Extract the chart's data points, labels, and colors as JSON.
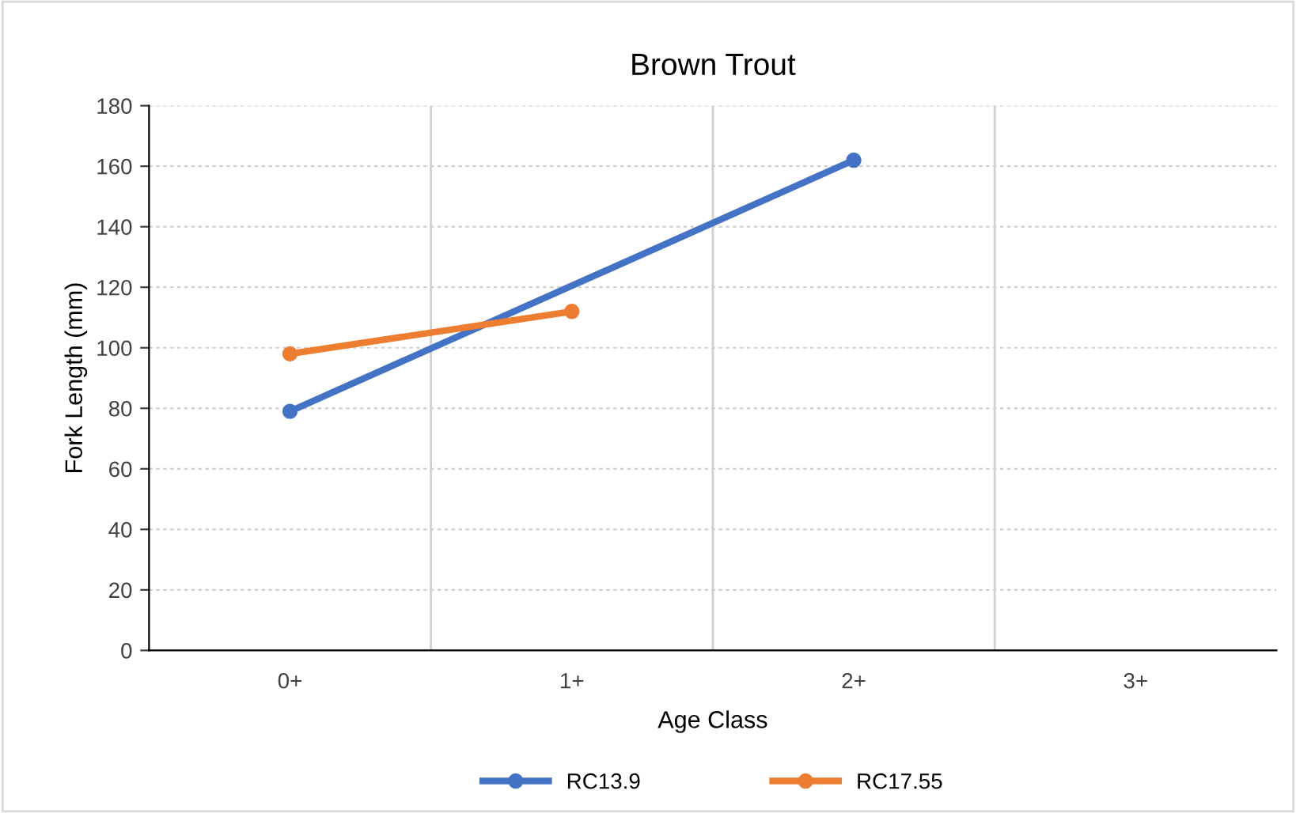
{
  "chart_data": {
    "type": "line",
    "title": "Brown Trout",
    "xlabel": "Age Class",
    "ylabel": "Fork Length (mm)",
    "categories": [
      "0+",
      "1+",
      "2+",
      "3+"
    ],
    "series": [
      {
        "name": "RC13.9",
        "color": "#4472c4",
        "values": [
          79,
          null,
          162,
          null
        ]
      },
      {
        "name": "RC17.55",
        "color": "#ed7d31",
        "values": [
          98,
          112,
          null,
          null
        ]
      }
    ],
    "ylim": [
      0,
      180
    ],
    "yticks": [
      0,
      20,
      40,
      60,
      80,
      100,
      120,
      140,
      160,
      180
    ],
    "grid": true,
    "legend": "bottom",
    "marker": "circle",
    "line_style": "solid"
  }
}
